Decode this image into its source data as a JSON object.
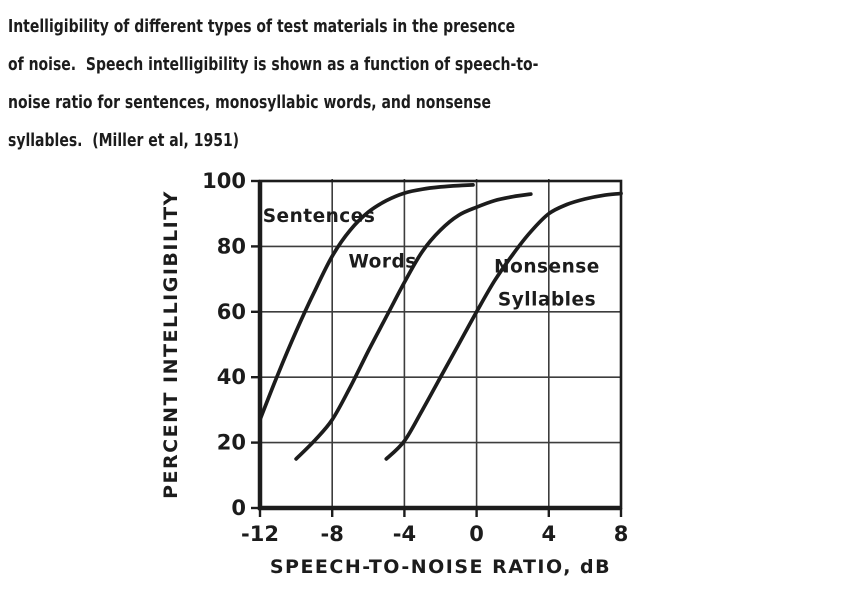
{
  "caption": {
    "lines": [
      "Intelligibility of different types of test materials in the presence",
      "of noise.  Speech intelligibility is shown as a function of speech-to-",
      "noise ratio for sentences, monosyllabic words, and nonsense",
      "syllables.  (Miller et al, 1951)"
    ]
  },
  "colors": {
    "ink": "#1c1c1c",
    "grid": "#3d3d3d",
    "background": "#ffffff"
  },
  "chart_data": {
    "type": "line",
    "title": "",
    "xlabel": "SPEECH-TO-NOISE RATIO,  dB",
    "ylabel": "PERCENT INTELLIGIBILITY",
    "xlim": [
      -12,
      8
    ],
    "ylim": [
      0,
      100
    ],
    "xticks": [
      -12,
      -8,
      -4,
      0,
      4,
      8
    ],
    "yticks": [
      0,
      20,
      40,
      60,
      80,
      100
    ],
    "grid": true,
    "legend_position": "inline-labels",
    "series": [
      {
        "name": "Sentences",
        "points": [
          [
            -12,
            27
          ],
          [
            -11,
            41
          ],
          [
            -10,
            54
          ],
          [
            -9,
            66
          ],
          [
            -8,
            77
          ],
          [
            -7,
            85
          ],
          [
            -6,
            90.5
          ],
          [
            -5,
            94
          ],
          [
            -4,
            96.3
          ],
          [
            -3,
            97.5
          ],
          [
            -2,
            98.2
          ],
          [
            -1,
            98.6
          ],
          [
            -0.2,
            98.8
          ]
        ],
        "label": {
          "lines": [
            "Sentences"
          ],
          "x": -11.85,
          "y": 87.5,
          "anchor": "start"
        }
      },
      {
        "name": "Words",
        "points": [
          [
            -10,
            15
          ],
          [
            -9,
            20.5
          ],
          [
            -8,
            27
          ],
          [
            -7,
            37
          ],
          [
            -6,
            48
          ],
          [
            -5,
            58.5
          ],
          [
            -4,
            69
          ],
          [
            -3,
            78.5
          ],
          [
            -2,
            85
          ],
          [
            -1,
            89.5
          ],
          [
            0,
            92
          ],
          [
            1,
            94
          ],
          [
            2,
            95.2
          ],
          [
            3,
            96
          ]
        ],
        "label": {
          "lines": [
            "Words"
          ],
          "x": -7.1,
          "y": 73.5,
          "anchor": "start"
        }
      },
      {
        "name": "Nonsense Syllables",
        "points": [
          [
            -5,
            15
          ],
          [
            -4,
            20.5
          ],
          [
            -3,
            30
          ],
          [
            -2,
            40
          ],
          [
            -1,
            50
          ],
          [
            0,
            60
          ],
          [
            1,
            69.5
          ],
          [
            2,
            77.5
          ],
          [
            3,
            84.5
          ],
          [
            4,
            90
          ],
          [
            5,
            92.8
          ],
          [
            6,
            94.5
          ],
          [
            7,
            95.6
          ],
          [
            8,
            96.2
          ]
        ],
        "label": {
          "lines": [
            "Nonsense",
            "Syllables"
          ],
          "x": 3.9,
          "y": 72,
          "anchor": "middle",
          "line_step_pct": 10
        }
      }
    ]
  }
}
